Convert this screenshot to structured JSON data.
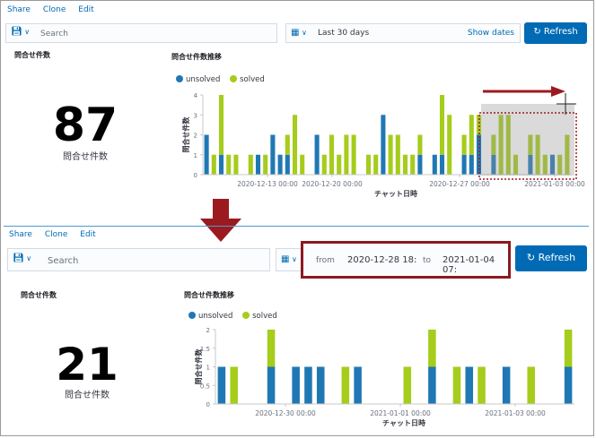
{
  "top": {
    "nav": [
      "Share",
      "Clone",
      "Edit"
    ],
    "search": {
      "placeholder": "Search",
      "icon": "saved-query-icon"
    },
    "date": {
      "icon": "calendar-icon",
      "label": "Last 30 days",
      "show_dates": "Show dates"
    },
    "refresh_label": "Refresh",
    "metric_panel_title": "問合せ件数",
    "metric_value": "87",
    "metric_label": "問合せ件数",
    "chart_panel_title": "問合せ件数推移"
  },
  "bottom": {
    "nav": [
      "Share",
      "Clone",
      "Edit"
    ],
    "search": {
      "placeholder": "Search",
      "icon": "saved-query-icon"
    },
    "date": {
      "icon": "calendar-icon",
      "from_label": "from",
      "from_value": "2020-12-28 18:",
      "to_label": "to",
      "to_value": "2021-01-04 07:"
    },
    "refresh_label": "Refresh",
    "metric_panel_title": "問合せ件数",
    "metric_value": "21",
    "metric_label": "問合せ件数",
    "chart_panel_title": "問合せ件数推移"
  },
  "colors": {
    "unsolved": "#1f78b4",
    "solved": "#a6cc1c",
    "accent": "#006bb4",
    "annotation": "#9b1a1f"
  },
  "chart_data": [
    {
      "type": "bar",
      "stacked": true,
      "series": [
        {
          "name": "unsolved",
          "values": [
            2,
            0,
            1,
            0,
            0,
            0,
            0,
            1,
            0,
            2,
            1,
            1,
            0,
            0,
            0,
            2,
            0,
            0,
            0,
            0,
            0,
            0,
            0,
            0,
            3,
            0,
            0,
            0,
            0,
            1,
            0,
            1,
            1,
            0,
            0,
            1,
            1,
            2,
            0,
            1,
            0,
            0,
            0,
            0,
            1,
            0,
            0,
            1,
            0,
            0
          ]
        },
        {
          "name": "solved",
          "values": [
            0,
            1,
            3,
            1,
            1,
            0,
            1,
            0,
            1,
            0,
            0,
            1,
            3,
            1,
            0,
            0,
            1,
            2,
            1,
            2,
            2,
            0,
            1,
            1,
            0,
            2,
            2,
            1,
            1,
            1,
            0,
            0,
            3,
            3,
            0,
            1,
            2,
            1,
            0,
            1,
            3,
            3,
            1,
            0,
            1,
            2,
            1,
            0,
            1,
            2
          ]
        }
      ],
      "x_ticks": [
        "2020-12-13 00:00",
        "2020-12-20 00:00",
        "2020-12-27 00:00",
        "2021-01-03 00:00"
      ],
      "ylabel": "問合せ件数",
      "xlabel": "チャット日時",
      "ylim": [
        0,
        4
      ],
      "y_ticks": [
        0,
        1,
        2,
        3,
        4
      ],
      "legend": "top-left",
      "grid": false
    },
    {
      "type": "bar",
      "stacked": true,
      "series": [
        {
          "name": "unsolved",
          "values": [
            1,
            0,
            0,
            0,
            1,
            0,
            1,
            1,
            1,
            0,
            0,
            1,
            0,
            0,
            0,
            0,
            0,
            1,
            0,
            0,
            1,
            0,
            0,
            1,
            0,
            0,
            0,
            0,
            1
          ]
        },
        {
          "name": "solved",
          "values": [
            0,
            1,
            0,
            0,
            1,
            0,
            0,
            0,
            0,
            0,
            1,
            0,
            0,
            0,
            0,
            1,
            0,
            1,
            0,
            1,
            0,
            1,
            0,
            0,
            0,
            1,
            0,
            0,
            1
          ]
        }
      ],
      "x_ticks": [
        "2020-12-30 00:00",
        "2021-01-01 00:00",
        "2021-01-03 00:00"
      ],
      "ylabel": "問合せ件数",
      "xlabel": "チャット日時",
      "ylim": [
        0,
        2
      ],
      "y_ticks": [
        0,
        0.5,
        1,
        1.5,
        2
      ],
      "legend": "top-left",
      "grid": false
    }
  ]
}
